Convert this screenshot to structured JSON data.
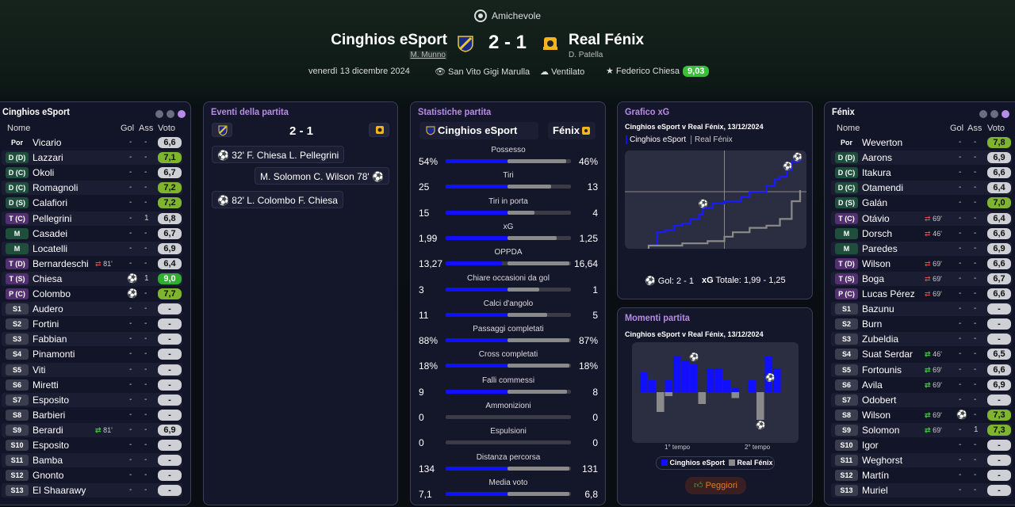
{
  "header": {
    "match_type": "Amichevole",
    "home_team": "Cinghios eSport",
    "home_coach": "M. Munno",
    "away_team": "Real Fénix",
    "away_coach": "D. Patella",
    "score": "2 - 1",
    "date": "venerdì 13 dicembre 2024",
    "stadium": "San Vito Gigi Marulla",
    "weather": "Ventilato",
    "mvp_name": "Federico Chiesa",
    "mvp_rating": "9,03"
  },
  "home_panel": {
    "title": "Cinghios eSport",
    "col_name": "Nome",
    "col_gol": "Gol",
    "col_ass": "Ass",
    "col_voto": "Voto",
    "players": [
      {
        "pos": "Por",
        "name": "Vicario",
        "gol": "-",
        "ass": "-",
        "voto": "6,6",
        "vc": "gray"
      },
      {
        "pos": "D (D)",
        "name": "Lazzari",
        "gol": "-",
        "ass": "-",
        "voto": "7,1",
        "vc": "green"
      },
      {
        "pos": "D (C)",
        "name": "Okoli",
        "gol": "-",
        "ass": "-",
        "voto": "6,7",
        "vc": "gray"
      },
      {
        "pos": "D (C)",
        "name": "Romagnoli",
        "gol": "-",
        "ass": "-",
        "voto": "7,2",
        "vc": "green"
      },
      {
        "pos": "D (S)",
        "name": "Calafiori",
        "gol": "-",
        "ass": "-",
        "voto": "7,2",
        "vc": "green"
      },
      {
        "pos": "T (C)",
        "name": "Pellegrini",
        "gol": "-",
        "ass": "1",
        "voto": "6,8",
        "vc": "gray"
      },
      {
        "pos": "M",
        "name": "Casadei",
        "gol": "-",
        "ass": "-",
        "voto": "6,7",
        "vc": "gray"
      },
      {
        "pos": "M",
        "name": "Locatelli",
        "gol": "-",
        "ass": "-",
        "voto": "6,9",
        "vc": "gray"
      },
      {
        "pos": "T (D)",
        "name": "Bernardeschi",
        "sub": "81'",
        "subdir": "out",
        "gol": "-",
        "ass": "-",
        "voto": "6,4",
        "vc": "gray"
      },
      {
        "pos": "T (S)",
        "name": "Chiesa",
        "icon": "⚽",
        "gol": "",
        "ass": "1",
        "voto": "9,0",
        "vc": "dkgreen"
      },
      {
        "pos": "P (C)",
        "name": "Colombo",
        "icon": "⚽",
        "gol": "",
        "ass": "-",
        "voto": "7,7",
        "vc": "green"
      },
      {
        "pos": "S1",
        "name": "Audero",
        "gol": "-",
        "ass": "-",
        "voto": "-",
        "vc": "gray"
      },
      {
        "pos": "S2",
        "name": "Fortini",
        "gol": "-",
        "ass": "-",
        "voto": "-",
        "vc": "gray"
      },
      {
        "pos": "S3",
        "name": "Fabbian",
        "gol": "-",
        "ass": "-",
        "voto": "-",
        "vc": "gray"
      },
      {
        "pos": "S4",
        "name": "Pinamonti",
        "gol": "-",
        "ass": "-",
        "voto": "-",
        "vc": "gray"
      },
      {
        "pos": "S5",
        "name": "Viti",
        "gol": "-",
        "ass": "-",
        "voto": "-",
        "vc": "gray"
      },
      {
        "pos": "S6",
        "name": "Miretti",
        "gol": "-",
        "ass": "-",
        "voto": "-",
        "vc": "gray"
      },
      {
        "pos": "S7",
        "name": "Esposito",
        "gol": "-",
        "ass": "-",
        "voto": "-",
        "vc": "gray"
      },
      {
        "pos": "S8",
        "name": "Barbieri",
        "gol": "-",
        "ass": "-",
        "voto": "-",
        "vc": "gray"
      },
      {
        "pos": "S9",
        "name": "Berardi",
        "sub": "81'",
        "subdir": "in",
        "gol": "-",
        "ass": "-",
        "voto": "6,9",
        "vc": "gray"
      },
      {
        "pos": "S10",
        "name": "Esposito",
        "gol": "-",
        "ass": "-",
        "voto": "-",
        "vc": "gray"
      },
      {
        "pos": "S11",
        "name": "Bamba",
        "gol": "-",
        "ass": "-",
        "voto": "-",
        "vc": "gray"
      },
      {
        "pos": "S12",
        "name": "Gnonto",
        "gol": "-",
        "ass": "-",
        "voto": "-",
        "vc": "gray"
      },
      {
        "pos": "S13",
        "name": "El Shaarawy",
        "gol": "-",
        "ass": "-",
        "voto": "-",
        "vc": "gray"
      }
    ]
  },
  "away_panel": {
    "title": "Fénix",
    "col_name": "Nome",
    "col_gol": "Gol",
    "col_ass": "Ass",
    "col_voto": "Voto",
    "players": [
      {
        "pos": "Por",
        "name": "Weverton",
        "gol": "-",
        "ass": "-",
        "voto": "7,8",
        "vc": "green"
      },
      {
        "pos": "D (D)",
        "name": "Aarons",
        "gol": "-",
        "ass": "-",
        "voto": "6,9",
        "vc": "gray"
      },
      {
        "pos": "D (C)",
        "name": "Itakura",
        "gol": "-",
        "ass": "-",
        "voto": "6,6",
        "vc": "gray"
      },
      {
        "pos": "D (C)",
        "name": "Otamendi",
        "gol": "-",
        "ass": "-",
        "voto": "6,4",
        "vc": "gray"
      },
      {
        "pos": "D (S)",
        "name": "Galán",
        "gol": "-",
        "ass": "-",
        "voto": "7,0",
        "vc": "green"
      },
      {
        "pos": "T (C)",
        "name": "Otávio",
        "sub": "69'",
        "subdir": "out",
        "gol": "-",
        "ass": "-",
        "voto": "6,4",
        "vc": "gray"
      },
      {
        "pos": "M",
        "name": "Dorsch",
        "sub": "46'",
        "subdir": "out",
        "gol": "-",
        "ass": "-",
        "voto": "6,6",
        "vc": "gray"
      },
      {
        "pos": "M",
        "name": "Paredes",
        "gol": "-",
        "ass": "-",
        "voto": "6,9",
        "vc": "gray"
      },
      {
        "pos": "T (D)",
        "name": "Wilson",
        "sub": "69'",
        "subdir": "out",
        "gol": "-",
        "ass": "-",
        "voto": "6,6",
        "vc": "gray"
      },
      {
        "pos": "T (S)",
        "name": "Boga",
        "sub": "69'",
        "subdir": "out",
        "gol": "-",
        "ass": "-",
        "voto": "6,7",
        "vc": "gray"
      },
      {
        "pos": "P (C)",
        "name": "Lucas Pérez",
        "sub": "69'",
        "subdir": "out",
        "gol": "-",
        "ass": "-",
        "voto": "6,6",
        "vc": "gray"
      },
      {
        "pos": "S1",
        "name": "Bazunu",
        "gol": "-",
        "ass": "-",
        "voto": "-",
        "vc": "gray"
      },
      {
        "pos": "S2",
        "name": "Burn",
        "gol": "-",
        "ass": "-",
        "voto": "-",
        "vc": "gray"
      },
      {
        "pos": "S3",
        "name": "Zubeldia",
        "gol": "-",
        "ass": "-",
        "voto": "-",
        "vc": "gray"
      },
      {
        "pos": "S4",
        "name": "Suat Serdar",
        "sub": "46'",
        "subdir": "in",
        "gol": "-",
        "ass": "-",
        "voto": "6,5",
        "vc": "gray"
      },
      {
        "pos": "S5",
        "name": "Fortounis",
        "sub": "69'",
        "subdir": "in",
        "gol": "-",
        "ass": "-",
        "voto": "6,6",
        "vc": "gray"
      },
      {
        "pos": "S6",
        "name": "Avila",
        "sub": "69'",
        "subdir": "in",
        "gol": "-",
        "ass": "-",
        "voto": "6,9",
        "vc": "gray"
      },
      {
        "pos": "S7",
        "name": "Odobert",
        "gol": "-",
        "ass": "-",
        "voto": "-",
        "vc": "gray"
      },
      {
        "pos": "S8",
        "name": "Wilson",
        "sub": "69'",
        "subdir": "in",
        "icon": "⚽",
        "gol": "",
        "ass": "-",
        "voto": "7,3",
        "vc": "green"
      },
      {
        "pos": "S9",
        "name": "Solomon",
        "sub": "69'",
        "subdir": "in",
        "gol": "-",
        "ass": "1",
        "voto": "7,3",
        "vc": "green"
      },
      {
        "pos": "S10",
        "name": "Igor",
        "gol": "-",
        "ass": "-",
        "voto": "-",
        "vc": "gray"
      },
      {
        "pos": "S11",
        "name": "Weghorst",
        "gol": "-",
        "ass": "-",
        "voto": "-",
        "vc": "gray"
      },
      {
        "pos": "S12",
        "name": "Martín",
        "gol": "-",
        "ass": "-",
        "voto": "-",
        "vc": "gray"
      },
      {
        "pos": "S13",
        "name": "Muriel",
        "gol": "-",
        "ass": "-",
        "voto": "-",
        "vc": "gray"
      }
    ]
  },
  "events": {
    "title": "Eventi della partita",
    "score": "2 - 1",
    "items": [
      {
        "side": "home",
        "text": "32'  F. Chiesa  L. Pellegrini"
      },
      {
        "side": "away",
        "text": "M. Solomon  C. Wilson  78'"
      },
      {
        "side": "home",
        "text": "82'  L. Colombo  F. Chiesa"
      }
    ]
  },
  "stats": {
    "title": "Statistiche partita",
    "home": "Cinghios eSport",
    "away": "Fénix",
    "rows": [
      {
        "label": "Possesso",
        "home": "54%",
        "away": "46%",
        "h": 54,
        "a": 46
      },
      {
        "label": "Tiri",
        "home": "25",
        "away": "13",
        "h": 25,
        "a": 13
      },
      {
        "label": "Tiri in porta",
        "home": "15",
        "away": "4",
        "h": 15,
        "a": 4
      },
      {
        "label": "xG",
        "home": "1,99",
        "away": "1,25",
        "h": 1.99,
        "a": 1.25
      },
      {
        "label": "OPPDA",
        "home": "13,27",
        "away": "16,64",
        "h": 13.27,
        "a": 16.64
      },
      {
        "label": "Chiare occasioni da gol",
        "home": "3",
        "away": "1",
        "h": 3,
        "a": 1
      },
      {
        "label": "Calci d'angolo",
        "home": "11",
        "away": "5",
        "h": 11,
        "a": 5
      },
      {
        "label": "Passaggi completati",
        "home": "88%",
        "away": "87%",
        "h": 88,
        "a": 87
      },
      {
        "label": "Cross completati",
        "home": "18%",
        "away": "18%",
        "h": 18,
        "a": 18
      },
      {
        "label": "Falli commessi",
        "home": "9",
        "away": "8",
        "h": 9,
        "a": 8
      },
      {
        "label": "Ammonizioni",
        "home": "0",
        "away": "0",
        "h": 0,
        "a": 0
      },
      {
        "label": "Espulsioni",
        "home": "0",
        "away": "0",
        "h": 0,
        "a": 0
      },
      {
        "label": "Distanza percorsa",
        "home": "134",
        "away": "131",
        "h": 134,
        "a": 131
      },
      {
        "label": "Media voto",
        "home": "7,1",
        "away": "6,8",
        "h": 7.1,
        "a": 6.8
      }
    ]
  },
  "xg_panel": {
    "title": "Grafico xG",
    "subtitle": "Cinghios eSport v Real Fénix, 13/12/2024",
    "legend_home": "Cinghios eSport",
    "legend_away": "Real Fénix",
    "footer_gol_label": "Gol: 2 - 1",
    "footer_xg_label": "xG",
    "footer_total": "Totale: 1,99 - 1,25"
  },
  "momenti_panel": {
    "title": "Momenti partita",
    "subtitle": "Cinghios eSport v Real Fénix, 13/12/2024",
    "half1": "1° tempo",
    "half2": "2° tempo",
    "legend_home": "Cinghios eSport",
    "legend_away": "Real Fénix",
    "button": "Peggiori"
  },
  "chart_data": [
    {
      "type": "line",
      "title": "Grafico xG",
      "series": [
        {
          "name": "Cinghios eSport",
          "x": [
            0,
            5,
            10,
            15,
            20,
            25,
            30,
            32,
            38,
            45,
            55,
            60,
            70,
            75,
            78,
            82,
            85,
            90
          ],
          "y": [
            0,
            0.3,
            0.35,
            0.45,
            0.5,
            0.6,
            0.7,
            0.85,
            0.95,
            1.0,
            1.1,
            1.2,
            1.35,
            1.5,
            1.55,
            1.7,
            1.9,
            1.99
          ]
        },
        {
          "name": "Real Fénix",
          "x": [
            0,
            20,
            35,
            45,
            50,
            60,
            70,
            78,
            85,
            90
          ],
          "y": [
            0,
            0.05,
            0.1,
            0.2,
            0.3,
            0.4,
            0.45,
            0.6,
            1.0,
            1.25
          ]
        }
      ]
    },
    {
      "type": "bar",
      "title": "Momenti partita",
      "series": [
        {
          "name": "Cinghios eSport",
          "values": [
            0.5,
            0.3,
            0.0,
            0.3,
            0.9,
            0.8,
            0.7,
            0.0,
            0.6,
            0.6,
            0.3,
            0.1,
            0.0,
            0.3,
            0.0,
            0.9,
            0.6
          ]
        },
        {
          "name": "Real Fénix",
          "values": [
            0.0,
            0.0,
            -0.5,
            -0.1,
            0.0,
            0.0,
            0.0,
            -0.3,
            0.0,
            0.0,
            0.0,
            -0.15,
            0.0,
            0.0,
            -0.7,
            0.0,
            0.0
          ]
        }
      ]
    }
  ]
}
